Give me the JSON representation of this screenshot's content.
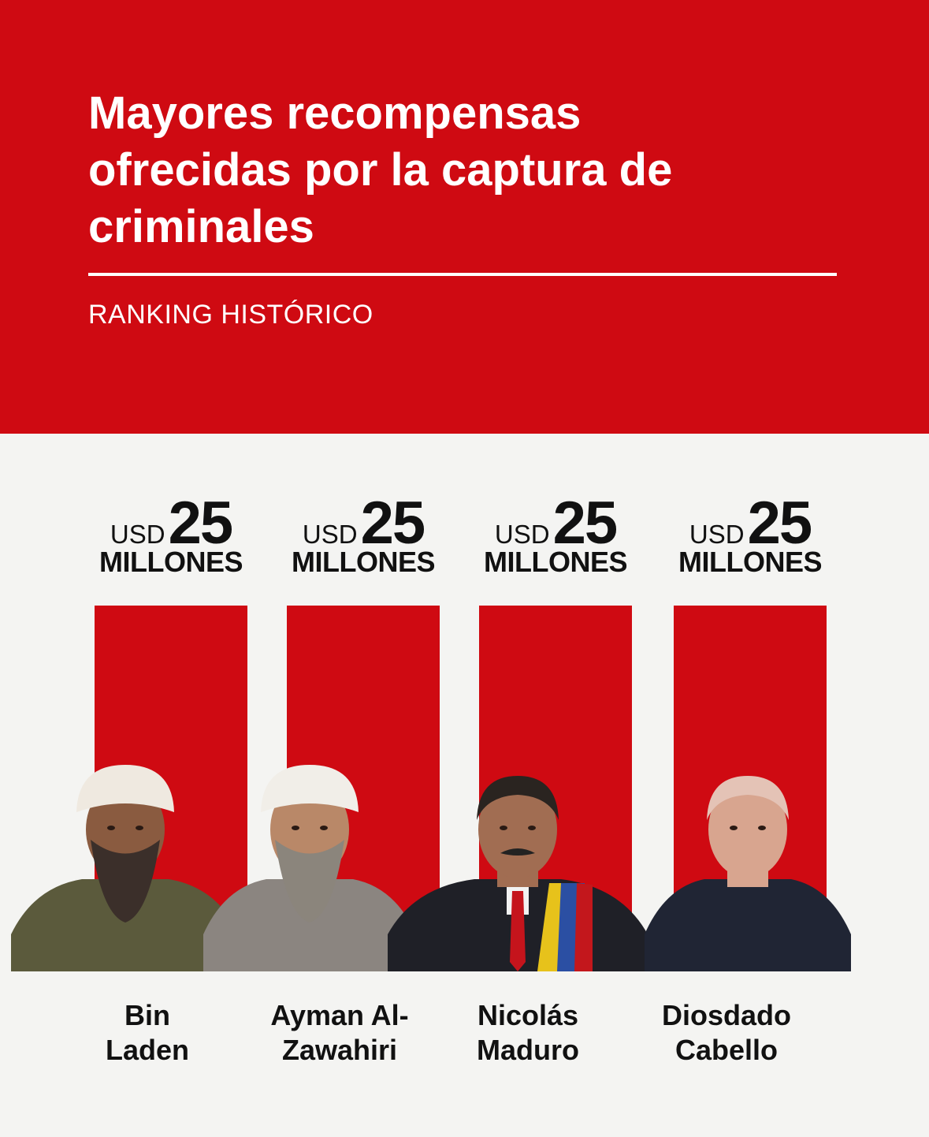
{
  "header": {
    "title_lines": [
      "Mayores recompensas",
      "ofrecidas por la captura de",
      "criminales"
    ],
    "subtitle": "RANKING HISTÓRICO"
  },
  "colors": {
    "brand_red": "#cf0a12",
    "background": "#f4f4f2",
    "text": "#111111"
  },
  "chart_data": {
    "type": "bar",
    "categories": [
      "Bin Laden",
      "Ayman Al-Zawahiri",
      "Nicolás Maduro",
      "Diosdado Cabello"
    ],
    "values": [
      25,
      25,
      25,
      25
    ],
    "unit": "USD millones",
    "labels": [
      {
        "currency": "USD",
        "amount": "25",
        "unit": "MILLONES",
        "name_lines": [
          "Bin",
          "Laden"
        ]
      },
      {
        "currency": "USD",
        "amount": "25",
        "unit": "MILLONES",
        "name_lines": [
          "Ayman Al-",
          "Zawahiri"
        ]
      },
      {
        "currency": "USD",
        "amount": "25",
        "unit": "MILLONES",
        "name_lines": [
          "Nicolás",
          "Maduro"
        ]
      },
      {
        "currency": "USD",
        "amount": "25",
        "unit": "MILLONES",
        "name_lines": [
          "Diosdado",
          "Cabello"
        ]
      }
    ],
    "ylim": [
      0,
      25
    ]
  },
  "photos": [
    "bin-laden-photo",
    "zawahiri-photo",
    "maduro-photo",
    "cabello-photo"
  ]
}
